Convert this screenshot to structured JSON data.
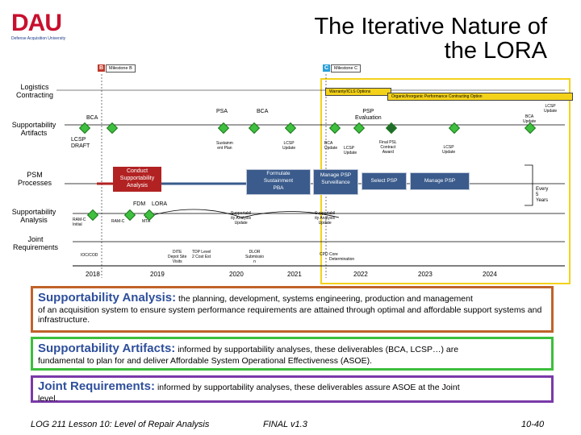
{
  "header": {
    "logo": "DAU",
    "logo_sub": "Defense Acquisition University",
    "title_line1": "The Iterative Nature of",
    "title_line2": "the LORA"
  },
  "milestones": {
    "b_letter": "B",
    "b_label": "Milestone B",
    "c_letter": "C",
    "c_label": "Milestone C"
  },
  "rows": {
    "logistics_contracting": "Logistics\nContracting",
    "supportability_artifacts": "Supportability\nArtifacts",
    "psm_processes": "PSM\nProcesses",
    "supportability_analysis": "Supportability\nAnalysis",
    "joint_requirements": "Joint\nRequirements"
  },
  "contracting": {
    "warranty": "Warranty/ICLS Options",
    "org_option": "Organic/Inorganic Performance Contracting Option"
  },
  "artifacts": {
    "bca1": "BCA",
    "psa": "PSA",
    "bca2": "BCA",
    "psp_eval": "PSP\nEvaluation",
    "lcsp_draft": "LCSP\nDRAFT",
    "sustain_plan": "Sustainm\nent Plan",
    "lcsp_update1": "LCSP\nUpdate",
    "bca_update": "BCA\nUpdate",
    "lcsp_update2": "LCSP\nUpdate",
    "final_psl": "Final PSL\nContract\nAward",
    "lcsp_update3": "LCSP\nUpdate",
    "lcsp_update4": "LCSP\nUpdate",
    "bca_update2": "BCA\nUpdate"
  },
  "psm": {
    "conduct": "Conduct\nSupportability\nAnalysis",
    "formulate": "Formulate\nSustainment\nPBA",
    "manage_psp1": "Manage PSP\nSurveillance",
    "select_psp": "Select PSP",
    "manage_psp2": "Manage PSP",
    "every_5": "Every\n5\nYears"
  },
  "analysis": {
    "fdm": "FDM",
    "lora": "LORA",
    "ramc_initial": "RAM-C\nInitial",
    "ramc": "RAM-C",
    "mta": "MTA",
    "supp_update1": "Supportabil\nity Analysis\nUpdate",
    "supp_update2": "Supportabil\nity Analysis\nUpdate"
  },
  "joint": {
    "ioc": "IOC/COD",
    "site": "DITE\nDepot Site\nVisits",
    "tdp": "TDP Level\n2 Cost Est",
    "dlor": "DLOR\nSubmissio\nn",
    "cpd": "CPD",
    "core": "Core\nDetermination"
  },
  "years": [
    "2018",
    "2019",
    "2020",
    "2021",
    "2022",
    "2023",
    "2024"
  ],
  "definitions": {
    "analysis_head": "Supportability Analysis:",
    "analysis_body1": " the planning, development, systems engineering, production and management",
    "analysis_body2": "of an acquisition system to ensure system performance requirements are attained through optimal  and affordable support systems and infrastructure.",
    "artifacts_head": "Supportability Artifacts:",
    "artifacts_body1": " informed by supportability analyses, these deliverables (BCA, LCSP…)  are",
    "artifacts_body2": "fundamental to plan for and deliver Affordable System Operational Effectiveness (ASOE).",
    "joint_head": "Joint Requirements:",
    "joint_body1": " informed by supportability analyses, these deliverables assure ASOE at the Joint",
    "joint_body2": "level."
  },
  "footer": {
    "course": "LOG 211 Lesson 10: Level of Repair Analysis",
    "version": "FINAL v1.3",
    "page": "10-40"
  },
  "colors": {
    "analysis_border": "#c0622a",
    "artifacts_border": "#3cbf3c",
    "joint_border": "#7a3aa8",
    "analysis_head": "#2e4f9c",
    "green_head": "#2e4f9c"
  }
}
